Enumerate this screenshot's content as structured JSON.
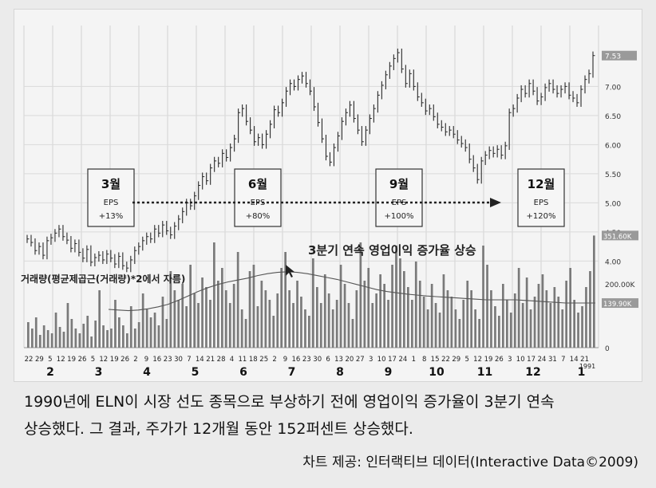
{
  "chart_data": {
    "type": "candlestick",
    "price_axis": {
      "ticks": [
        "7.00",
        "6.50",
        "6.00",
        "5.50",
        "5.00",
        "4.50",
        "4.00"
      ],
      "last_price": "7.53",
      "ylim": [
        3.8,
        7.8
      ]
    },
    "volume_axis": {
      "ticks": [
        "200.00K",
        "0"
      ],
      "last_volume": "351.60K",
      "average_volume": "139.90K"
    },
    "x_day_labels": [
      "22",
      "29",
      "5",
      "12",
      "19",
      "26",
      "5",
      "12",
      "19",
      "26",
      "2",
      "9",
      "16",
      "23",
      "30",
      "7",
      "14",
      "21",
      "28",
      "4",
      "11",
      "18",
      "25",
      "2",
      "9",
      "16",
      "23",
      "30",
      "6",
      "13",
      "20",
      "27",
      "3",
      "10",
      "17",
      "24",
      "1",
      "8",
      "15",
      "22",
      "29",
      "5",
      "12",
      "19",
      "26",
      "3",
      "10",
      "17",
      "24",
      "31",
      "7",
      "14",
      "21"
    ],
    "x_month_labels": [
      "2",
      "3",
      "4",
      "5",
      "6",
      "7",
      "8",
      "9",
      "10",
      "11",
      "12",
      "1"
    ],
    "x_year_label": "1991",
    "prices": [
      4.38,
      4.32,
      4.18,
      4.25,
      4.1,
      4.35,
      4.4,
      4.48,
      4.55,
      4.42,
      4.36,
      4.22,
      4.3,
      4.15,
      4.05,
      4.2,
      3.98,
      4.06,
      4.1,
      4.02,
      4.12,
      4.05,
      3.95,
      4.08,
      3.92,
      3.88,
      4.02,
      4.18,
      4.25,
      4.35,
      4.42,
      4.38,
      4.55,
      4.48,
      4.62,
      4.52,
      4.45,
      4.6,
      4.72,
      4.85,
      5.0,
      4.95,
      5.12,
      5.3,
      5.45,
      5.38,
      5.6,
      5.72,
      5.68,
      5.85,
      5.78,
      5.95,
      6.1,
      6.55,
      6.62,
      6.4,
      6.25,
      6.05,
      6.12,
      6.0,
      6.18,
      6.35,
      6.6,
      6.55,
      6.72,
      6.92,
      7.05,
      7.0,
      7.12,
      7.18,
      7.05,
      6.92,
      6.65,
      6.38,
      6.1,
      5.8,
      5.7,
      5.95,
      6.15,
      6.4,
      6.55,
      6.68,
      6.45,
      6.25,
      6.05,
      6.25,
      6.45,
      6.62,
      6.85,
      7.02,
      7.2,
      7.35,
      7.48,
      7.58,
      7.3,
      7.05,
      7.22,
      7.0,
      6.82,
      6.72,
      6.58,
      6.62,
      6.48,
      6.35,
      6.3,
      6.22,
      6.25,
      6.18,
      6.08,
      6.02,
      5.95,
      5.75,
      5.6,
      5.4,
      5.72,
      5.82,
      5.9,
      5.85,
      5.92,
      5.82,
      5.98,
      6.55,
      6.62,
      6.8,
      6.95,
      6.88,
      7.05,
      6.92,
      6.75,
      6.82,
      6.98,
      7.05,
      6.95,
      6.88,
      6.95,
      7.0,
      6.85,
      6.8,
      6.72,
      6.95,
      7.12,
      7.22,
      7.53
    ],
    "volumes": [
      80,
      60,
      95,
      40,
      70,
      55,
      45,
      110,
      65,
      50,
      140,
      90,
      60,
      45,
      75,
      100,
      35,
      85,
      180,
      70,
      55,
      60,
      150,
      95,
      70,
      45,
      130,
      60,
      80,
      170,
      120,
      95,
      110,
      70,
      160,
      90,
      240,
      180,
      150,
      200,
      130,
      260,
      170,
      140,
      220,
      190,
      150,
      330,
      210,
      250,
      180,
      140,
      200,
      300,
      120,
      90,
      240,
      260,
      130,
      210,
      180,
      150,
      100,
      170,
      250,
      300,
      180,
      140,
      210,
      160,
      120,
      100,
      280,
      190,
      140,
      230,
      170,
      120,
      150,
      260,
      200,
      140,
      90,
      180,
      330,
      210,
      250,
      140,
      170,
      230,
      200,
      150,
      260,
      320,
      280,
      240,
      190,
      150,
      270,
      210,
      160,
      120,
      200,
      140,
      110,
      230,
      180,
      160,
      120,
      90,
      150,
      210,
      180,
      120,
      90,
      320,
      260,
      180,
      130,
      100,
      200,
      150,
      110,
      170,
      250,
      140,
      220,
      120,
      160,
      200,
      230,
      180,
      140,
      190,
      160,
      120,
      210,
      250,
      150,
      110,
      130,
      190,
      240,
      351.6
    ],
    "moving_avg_volume": [
      120,
      118,
      116,
      118,
      122,
      128,
      136,
      148,
      162,
      176,
      188,
      198,
      206,
      212,
      218,
      226,
      232,
      236,
      238,
      236,
      232,
      226,
      220,
      214,
      206,
      198,
      190,
      182,
      176,
      172,
      168,
      165,
      162,
      160,
      158,
      156,
      154,
      152,
      150,
      150,
      150,
      150,
      148,
      146,
      144,
      142,
      140,
      140,
      140,
      140
    ],
    "callouts": [
      {
        "month": "3월",
        "label": "EPS",
        "value": "+13%"
      },
      {
        "month": "6월",
        "label": "EPS",
        "value": "+80%"
      },
      {
        "month": "9월",
        "label": "EPS",
        "value": "+100%"
      },
      {
        "month": "12월",
        "label": "EPS",
        "value": "+120%"
      }
    ],
    "annotation": "3분기 연속 영업이익 증가율 상승",
    "volume_label": "거래량(평균제곱근(거래량)*2에서 자름)"
  },
  "caption": {
    "line1": "1990년에 ELN이 시장 선도 종목으로 부상하기 전에 영업이익 증가율이 3분기 연속",
    "line2": "상승했다. 그 결과, 주가가 12개월 동안 152퍼센트 상승했다.",
    "source": "차트 제공: 인터랙티브 데이터(Interactive Data©2009)"
  }
}
